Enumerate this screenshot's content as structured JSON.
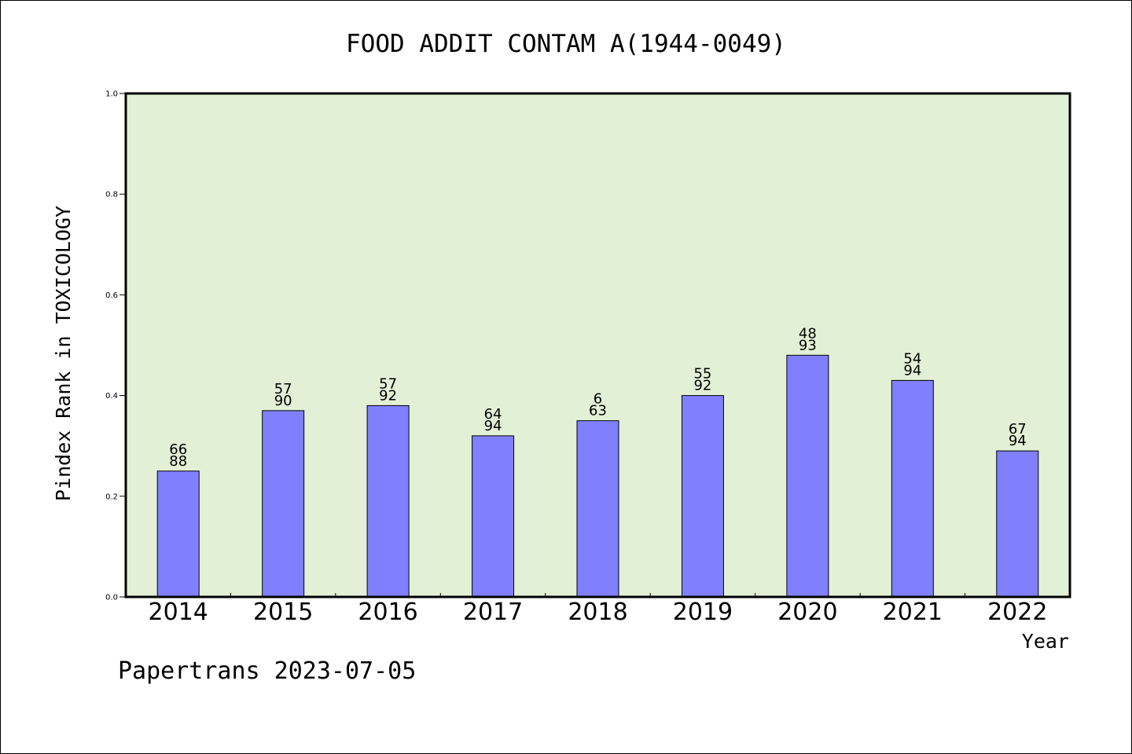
{
  "chart_data": {
    "type": "bar",
    "title": "FOOD ADDIT CONTAM A(1944-0049)",
    "xlabel": "Year",
    "ylabel": "Pindex Rank in TOXICOLOGY",
    "ylim": [
      0,
      1.0
    ],
    "yticks": [
      "0.0",
      "0.2",
      "0.4",
      "0.6",
      "0.8",
      "1.0"
    ],
    "categories": [
      "2014",
      "2015",
      "2016",
      "2017",
      "2018",
      "2019",
      "2020",
      "2021",
      "2022"
    ],
    "values": [
      0.25,
      0.37,
      0.38,
      0.32,
      0.35,
      0.4,
      0.48,
      0.43,
      0.29
    ],
    "labels_top": [
      "66",
      "57",
      "57",
      "64",
      "6",
      "55",
      "48",
      "54",
      "67"
    ],
    "labels_bottom": [
      "88",
      "90",
      "92",
      "94",
      "63",
      "92",
      "93",
      "94",
      "94"
    ],
    "grid": false,
    "colors": {
      "plot_background": "#e2f0d6",
      "bar_fill": "#8080ff",
      "bar_stroke": "#000000"
    }
  },
  "footer": "Papertrans 2023-07-05"
}
